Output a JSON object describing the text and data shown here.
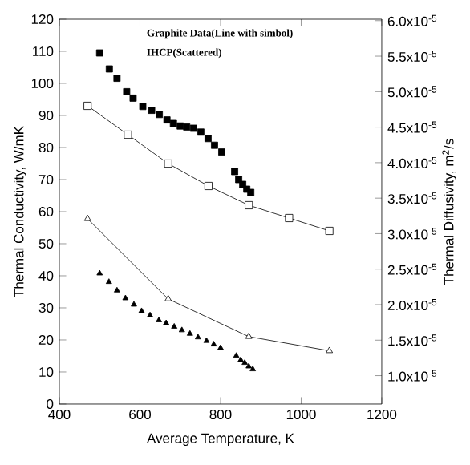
{
  "chart_data": {
    "type": "scatter",
    "xlabel": "Average Temperature, K",
    "ylabel": "Thermal Conductivity, W/mK",
    "y2label": "Thermal Diffusivity, m$^{2}$/s",
    "annotations": [
      "Graphite Data(Line with simbol)",
      "IHCP(Scattered)"
    ],
    "xlim": [
      400,
      1200
    ],
    "xticks": [
      400,
      600,
      800,
      1000,
      1200
    ],
    "ylim": [
      0,
      120
    ],
    "yticks": [
      0,
      10,
      20,
      30,
      40,
      50,
      60,
      70,
      80,
      90,
      100,
      110,
      120
    ],
    "y2lim": [
      6e-06,
      6.02e-05
    ],
    "y2ticks": [
      {
        "value": 1e-05,
        "label": "1.0x10$^{-5}$"
      },
      {
        "value": 1.5e-05,
        "label": "1.5x10$^{-5}$"
      },
      {
        "value": 2e-05,
        "label": "2.0x10$^{-5}$"
      },
      {
        "value": 2.5e-05,
        "label": "2.5x10$^{-5}$"
      },
      {
        "value": 3e-05,
        "label": "3.0x10$^{-5}$"
      },
      {
        "value": 3.5e-05,
        "label": "3.5x10$^{-5}$"
      },
      {
        "value": 4e-05,
        "label": "4.0x10$^{-5}$"
      },
      {
        "value": 4.5e-05,
        "label": "4.5x10$^{-5}$"
      },
      {
        "value": 5e-05,
        "label": "5.0x10$^{-5}$"
      },
      {
        "value": 5.5e-05,
        "label": "5.5x10$^{-5}$"
      },
      {
        "value": 6e-05,
        "label": "6.0x10$^{-5}$"
      }
    ],
    "series": [
      {
        "type": "scatter",
        "marker": "square",
        "color": "#000000",
        "x": [
          500,
          524,
          543,
          567,
          583,
          607,
          629,
          648,
          667,
          683,
          700,
          716,
          733,
          751,
          769,
          785,
          803,
          835,
          845,
          855,
          865,
          875
        ],
        "values": [
          109.5,
          104.5,
          101.6,
          97.4,
          95.4,
          92.8,
          91.6,
          90.3,
          88.6,
          87.5,
          86.7,
          86.4,
          86,
          84.8,
          82.8,
          80.7,
          78.6,
          72.5,
          70,
          68.5,
          67,
          66
        ]
      },
      {
        "type": "line",
        "marker": "square",
        "color": "#000000",
        "x": [
          470,
          570,
          670,
          770,
          870,
          970,
          1070
        ],
        "values": [
          93,
          84,
          75,
          68,
          62,
          58,
          54
        ]
      },
      {
        "type": "line",
        "marker": "triangle",
        "axis": "y2",
        "color": "#000000",
        "x": [
          470,
          670,
          870,
          1070
        ],
        "values": [
          3.21e-05,
          2.08e-05,
          1.55e-05,
          1.35e-05
        ]
      },
      {
        "type": "scatter",
        "marker": "triangle",
        "axis": "y2",
        "color": "#000000",
        "x": [
          500,
          523,
          543,
          564,
          585,
          604,
          625,
          647,
          665,
          685,
          704,
          724,
          744,
          765,
          783,
          800,
          839,
          850,
          860,
          870,
          880
        ],
        "values": [
          2.44e-05,
          2.32e-05,
          2.2e-05,
          2.09e-05,
          2e-05,
          1.91e-05,
          1.85e-05,
          1.78e-05,
          1.74e-05,
          1.69e-05,
          1.64e-05,
          1.59e-05,
          1.54e-05,
          1.49e-05,
          1.44e-05,
          1.39e-05,
          1.28e-05,
          1.22e-05,
          1.18e-05,
          1.13e-05,
          1.09e-05
        ]
      }
    ]
  }
}
